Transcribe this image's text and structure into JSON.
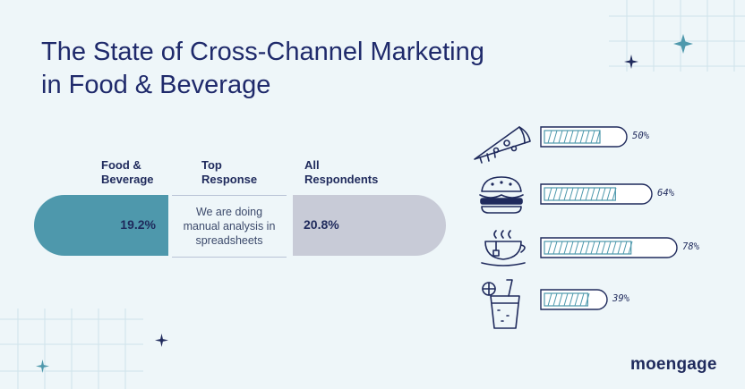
{
  "header": {
    "title_line1": "The State of Cross-Channel Marketing",
    "title_line2": "in Food & Beverage"
  },
  "columns": [
    {
      "line1": "Food &",
      "line2": "Beverage"
    },
    {
      "line1": "Top",
      "line2": "Response"
    },
    {
      "line1": "All",
      "line2": "Respondents"
    }
  ],
  "comparison": {
    "food_beverage_value": "19.2%",
    "top_response_line1": "We are doing",
    "top_response_line2": "manual analysis in",
    "top_response_line3": "spreadsheets",
    "all_respondents_value": "20.8%"
  },
  "chart_data": {
    "type": "bar",
    "orientation": "horizontal",
    "categories": [
      "pizza-icon",
      "burger-icon",
      "tea-cup-icon",
      "juice-glass-icon"
    ],
    "values": [
      50,
      64,
      78,
      39
    ],
    "value_labels": [
      "50%",
      "64%",
      "78%",
      "39%"
    ],
    "xlim": [
      0,
      100
    ]
  },
  "brand": {
    "name": "moengage"
  },
  "colors": {
    "background": "#eef6f9",
    "title": "#1f2a6b",
    "food_beverage": "#4e98ac",
    "all_respondents": "#c8cbd7",
    "accent_teal": "#4e98ac",
    "navy": "#1f2a5c"
  }
}
